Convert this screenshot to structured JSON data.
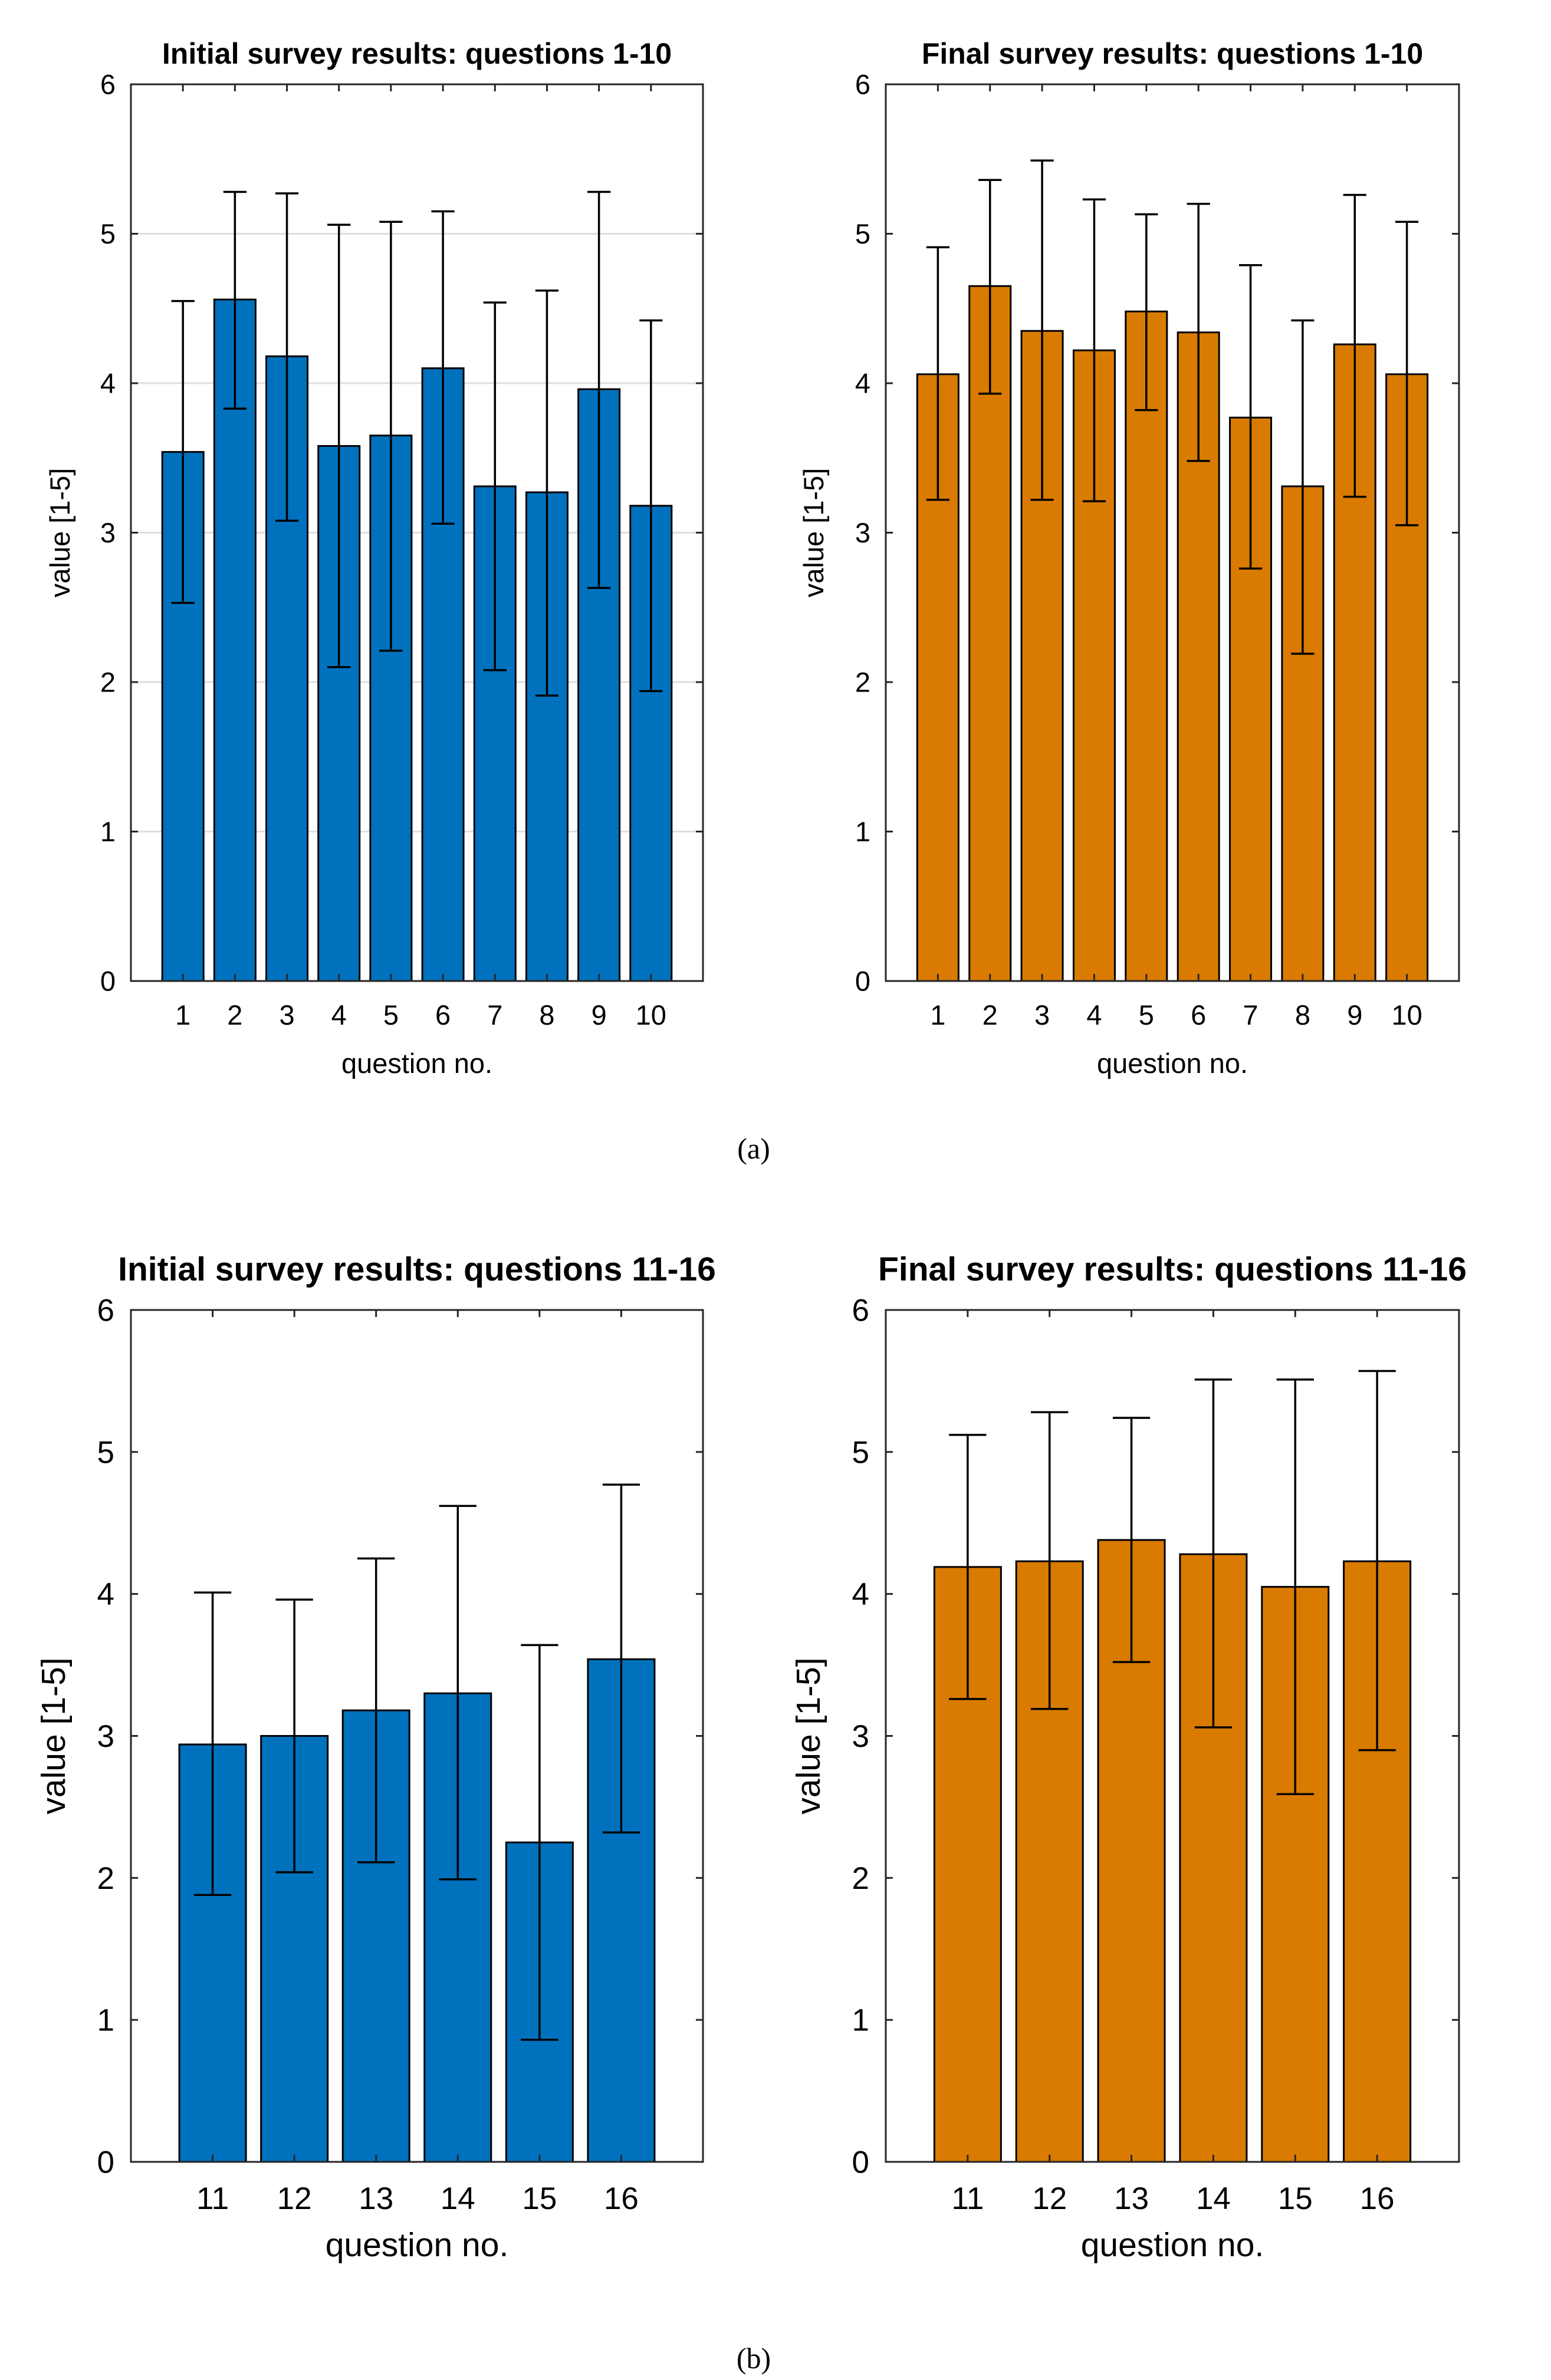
{
  "colors": {
    "initial": "#0072bd",
    "final": "#d97b00"
  },
  "chart_data": [
    {
      "type": "bar",
      "title": "Initial survey results: questions 1-10",
      "xlabel": "question no.",
      "ylabel": "value [1-5]",
      "ylim": [
        0,
        6
      ],
      "yticks": [
        "0",
        "1",
        "2",
        "3",
        "4",
        "5",
        "6"
      ],
      "grid": true,
      "categories": [
        "1",
        "2",
        "3",
        "4",
        "5",
        "6",
        "7",
        "8",
        "9",
        "10"
      ],
      "values": [
        3.54,
        4.56,
        4.18,
        3.58,
        3.65,
        4.1,
        3.31,
        3.27,
        3.96,
        3.18
      ],
      "error_low": [
        2.53,
        3.83,
        3.08,
        2.1,
        2.21,
        3.06,
        2.08,
        1.91,
        2.63,
        1.94
      ],
      "error_high": [
        4.55,
        5.28,
        5.27,
        5.06,
        5.08,
        5.15,
        4.54,
        4.62,
        5.28,
        4.42
      ]
    },
    {
      "type": "bar",
      "title": "Final survey results: questions 1-10",
      "xlabel": "question no.",
      "ylabel": "value [1-5]",
      "ylim": [
        0,
        6
      ],
      "yticks": [
        "0",
        "1",
        "2",
        "3",
        "4",
        "5",
        "6"
      ],
      "grid": false,
      "categories": [
        "1",
        "2",
        "3",
        "4",
        "5",
        "6",
        "7",
        "8",
        "9",
        "10"
      ],
      "values": [
        4.06,
        4.65,
        4.35,
        4.22,
        4.48,
        4.34,
        3.77,
        3.31,
        4.26,
        4.06
      ],
      "error_low": [
        3.22,
        3.93,
        3.22,
        3.21,
        3.82,
        3.48,
        2.76,
        2.19,
        3.24,
        3.05
      ],
      "error_high": [
        4.91,
        5.36,
        5.49,
        5.23,
        5.13,
        5.2,
        4.79,
        4.42,
        5.26,
        5.08
      ]
    },
    {
      "type": "bar",
      "title": "Initial survey results: questions 11-16",
      "xlabel": "question no.",
      "ylabel": "value [1-5]",
      "ylim": [
        0,
        6
      ],
      "yticks": [
        "0",
        "1",
        "2",
        "3",
        "4",
        "5",
        "6"
      ],
      "grid": false,
      "categories": [
        "11",
        "12",
        "13",
        "14",
        "15",
        "16"
      ],
      "values": [
        2.94,
        3.0,
        3.18,
        3.3,
        2.25,
        3.54
      ],
      "error_low": [
        1.88,
        2.04,
        2.11,
        1.99,
        0.86,
        2.32
      ],
      "error_high": [
        4.01,
        3.96,
        4.25,
        4.62,
        3.64,
        4.77
      ]
    },
    {
      "type": "bar",
      "title": "Final survey results: questions 11-16",
      "xlabel": "question no.",
      "ylabel": "value [1-5]",
      "ylim": [
        0,
        6
      ],
      "yticks": [
        "0",
        "1",
        "2",
        "3",
        "4",
        "5",
        "6"
      ],
      "grid": false,
      "categories": [
        "11",
        "12",
        "13",
        "14",
        "15",
        "16"
      ],
      "values": [
        4.19,
        4.23,
        4.38,
        4.28,
        4.05,
        4.23
      ],
      "error_low": [
        3.26,
        3.19,
        3.52,
        3.06,
        2.59,
        2.9
      ],
      "error_high": [
        5.12,
        5.28,
        5.24,
        5.51,
        5.51,
        5.57
      ]
    }
  ],
  "captions": {
    "a": "(a)",
    "b": "(b)"
  }
}
